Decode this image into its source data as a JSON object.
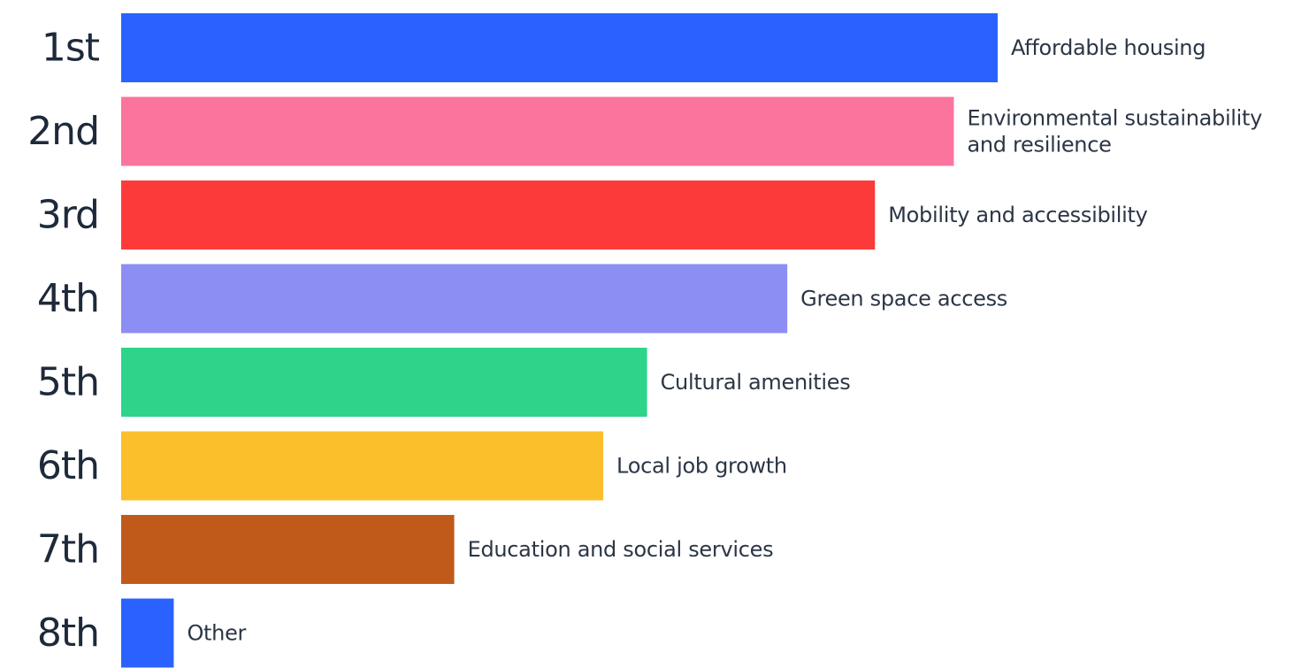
{
  "chart_data": {
    "type": "bar",
    "orientation": "horizontal",
    "title": "",
    "xlabel": "",
    "ylabel": "",
    "ranks": [
      "1st",
      "2nd",
      "3rd",
      "4th",
      "5th",
      "6th",
      "7th",
      "8th"
    ],
    "categories": [
      [
        "Affordable housing"
      ],
      [
        "Environmental sustainability",
        "and resilience"
      ],
      [
        "Mobility and accessibility"
      ],
      [
        "Green space access"
      ],
      [
        "Cultural amenities"
      ],
      [
        "Local job growth"
      ],
      [
        "Education and social services"
      ],
      [
        "Other"
      ]
    ],
    "values": [
      100,
      95,
      86,
      76,
      60,
      55,
      38,
      6
    ],
    "xlim": [
      0,
      100
    ],
    "colors": [
      "#2962ff",
      "#fb749e",
      "#fc3a3a",
      "#8d8ef3",
      "#2ed48a",
      "#fbbf2c",
      "#c05a1a",
      "#2962ff"
    ],
    "grid": false,
    "legend": "none",
    "value_labels_shown": false,
    "note": ""
  }
}
